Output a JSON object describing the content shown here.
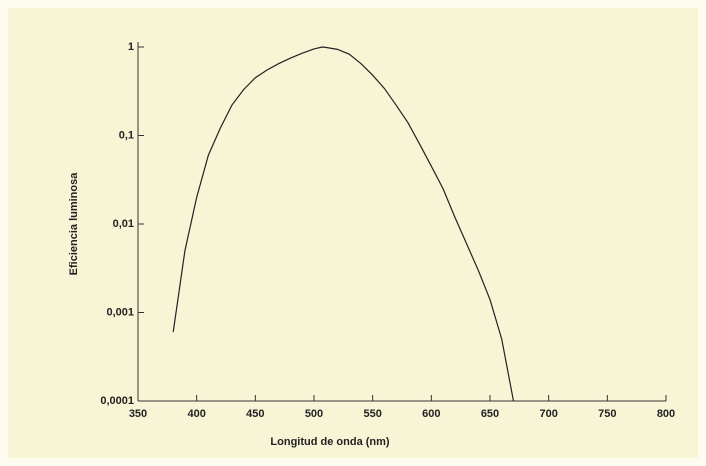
{
  "chart_data": {
    "type": "line",
    "x_label": "Longitud de onda (nm)",
    "y_label": "Eficiencia luminosa",
    "log_y": true,
    "color": "#222222",
    "x": [
      380,
      390,
      400,
      410,
      420,
      430,
      440,
      450,
      460,
      470,
      480,
      490,
      500,
      507,
      510,
      520,
      530,
      540,
      550,
      560,
      570,
      580,
      590,
      600,
      610,
      620,
      630,
      640,
      650,
      660,
      670
    ],
    "values": [
      0.0006,
      0.005,
      0.02,
      0.06,
      0.12,
      0.22,
      0.33,
      0.45,
      0.55,
      0.65,
      0.75,
      0.85,
      0.95,
      1,
      0.99,
      0.94,
      0.83,
      0.65,
      0.48,
      0.34,
      0.22,
      0.14,
      0.08,
      0.045,
      0.025,
      0.012,
      0.006,
      0.003,
      0.0014,
      0.0005,
      0.0001
    ],
    "xlim": [
      350,
      800
    ],
    "xticks": [
      350,
      400,
      450,
      500,
      550,
      600,
      650,
      700,
      750,
      800
    ],
    "ylim": [
      0.0001,
      1
    ],
    "yticks": [
      {
        "value": 0.0001,
        "label": "0,0001"
      },
      {
        "value": 0.001,
        "label": "0,001"
      },
      {
        "value": 0.01,
        "label": "0,01"
      },
      {
        "value": 0.1,
        "label": "0,1"
      },
      1
    ]
  }
}
